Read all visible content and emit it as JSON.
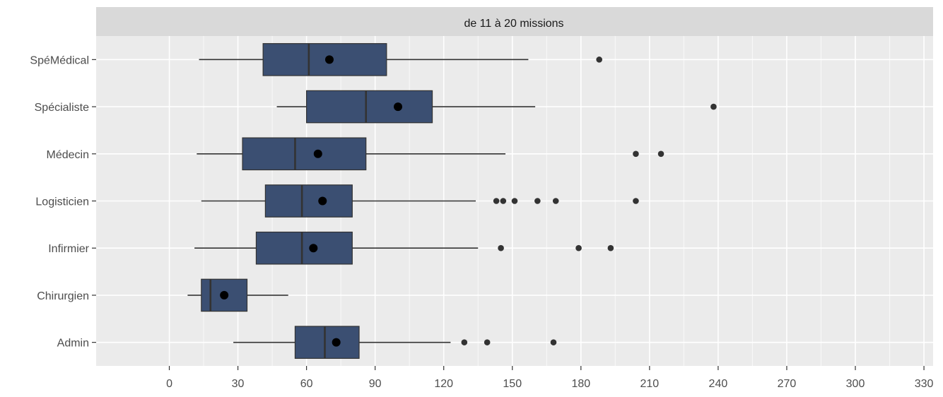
{
  "chart_data": {
    "type": "boxplot",
    "orientation": "horizontal",
    "facet_label": "de 11 à 20 missions",
    "xlabel": "",
    "ylabel": "",
    "xlim": [
      -32,
      334
    ],
    "x_ticks": [
      0,
      30,
      60,
      90,
      120,
      150,
      180,
      210,
      240,
      270,
      300,
      330
    ],
    "grid": true,
    "colors": {
      "box_fill": "#3b4f72",
      "panel_bg": "#ebebeb",
      "strip_bg": "#d9d9d9",
      "grid": "#ffffff",
      "line": "#333333",
      "point": "#000000"
    },
    "categories": [
      "SpéMédical",
      "Spécialiste",
      "Médecin",
      "Logisticien",
      "Infirmier",
      "Chirurgien",
      "Admin"
    ],
    "boxes": [
      {
        "category": "SpéMédical",
        "whisker_low": 13,
        "q1": 41,
        "median": 61,
        "q3": 95,
        "whisker_high": 157,
        "mean": 70,
        "outliers": [
          188
        ]
      },
      {
        "category": "Spécialiste",
        "whisker_low": 47,
        "q1": 60,
        "median": 86,
        "q3": 115,
        "whisker_high": 160,
        "mean": 100,
        "outliers": [
          238
        ]
      },
      {
        "category": "Médecin",
        "whisker_low": 12,
        "q1": 32,
        "median": 55,
        "q3": 86,
        "whisker_high": 147,
        "mean": 65,
        "outliers": [
          204,
          215
        ]
      },
      {
        "category": "Logisticien",
        "whisker_low": 14,
        "q1": 42,
        "median": 58,
        "q3": 80,
        "whisker_high": 134,
        "mean": 67,
        "outliers": [
          143,
          146,
          151,
          161,
          169,
          204
        ]
      },
      {
        "category": "Infirmier",
        "whisker_low": 11,
        "q1": 38,
        "median": 58,
        "q3": 80,
        "whisker_high": 135,
        "mean": 63,
        "outliers": [
          145,
          179,
          193
        ]
      },
      {
        "category": "Chirurgien",
        "whisker_low": 8,
        "q1": 14,
        "median": 18,
        "q3": 34,
        "whisker_high": 52,
        "mean": 24,
        "outliers": []
      },
      {
        "category": "Admin",
        "whisker_low": 28,
        "q1": 55,
        "median": 68,
        "q3": 83,
        "whisker_high": 123,
        "mean": 73,
        "outliers": [
          129,
          139,
          168
        ]
      }
    ]
  }
}
